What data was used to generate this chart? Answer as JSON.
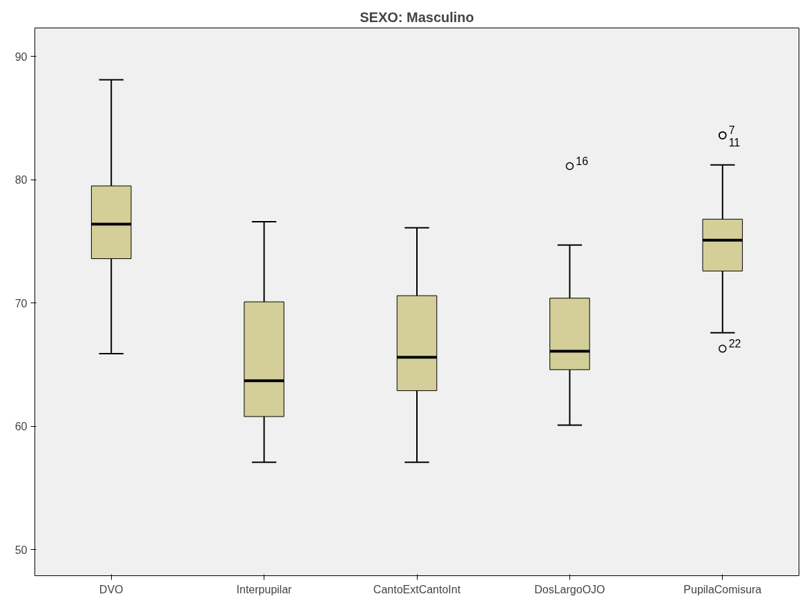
{
  "chart_data": {
    "type": "box",
    "title": "SEXO: Masculino",
    "categories": [
      "DVO",
      "Interpupilar",
      "CantoExtCantoInt",
      "DosLargoOJO",
      "PupilaComisura"
    ],
    "color": "#d4cf98",
    "boxes": [
      {
        "low": 65.9,
        "q1": 73.6,
        "median": 76.4,
        "q3": 79.5,
        "high": 88.1
      },
      {
        "low": 57.1,
        "q1": 60.8,
        "median": 63.7,
        "q3": 70.1,
        "high": 76.6
      },
      {
        "low": 57.1,
        "q1": 62.9,
        "median": 65.6,
        "q3": 70.6,
        "high": 76.1
      },
      {
        "low": 60.1,
        "q1": 64.6,
        "median": 66.1,
        "q3": 70.4,
        "high": 74.7,
        "outliers": [
          81.1
        ]
      },
      {
        "low": 67.6,
        "q1": 72.6,
        "median": 75.1,
        "q3": 76.8,
        "high": 81.2,
        "outliers": [
          83.6,
          83.6,
          66.3
        ]
      }
    ],
    "annotations": [
      "16",
      "7",
      "11",
      "22"
    ],
    "ylim": [
      47.9,
      92.3
    ],
    "yticks": [
      50,
      60,
      70,
      80,
      90
    ],
    "grid": false
  }
}
